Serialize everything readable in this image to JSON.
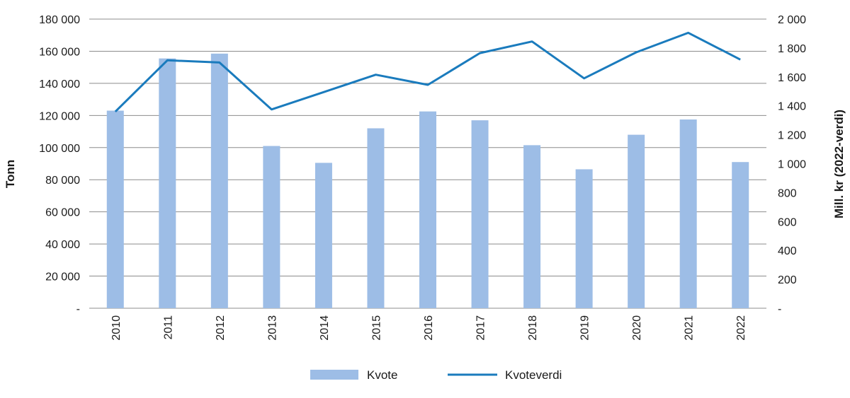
{
  "chart_data": {
    "type": "bar+line",
    "categories": [
      "2010",
      "2011",
      "2012",
      "2013",
      "2014",
      "2015",
      "2016",
      "2017",
      "2018",
      "2019",
      "2020",
      "2021",
      "2022"
    ],
    "series": [
      {
        "name": "Kvote",
        "type": "bar",
        "axis": "left",
        "color": "#9dbde6",
        "values": [
          123000,
          155500,
          158500,
          101000,
          90500,
          112000,
          122500,
          117000,
          101500,
          86500,
          108000,
          117500,
          91000
        ]
      },
      {
        "name": "Kvoteverdi",
        "type": "line",
        "axis": "right",
        "color": "#1a7bbd",
        "values": [
          1360,
          1715,
          1700,
          1375,
          1495,
          1615,
          1545,
          1765,
          1845,
          1590,
          1770,
          1905,
          1720
        ]
      }
    ],
    "ylabel_left": "Tonn",
    "ylabel_right": "Mill. kr (2022-verdi)",
    "ylim_left": [
      0,
      180000
    ],
    "ylim_right": [
      0,
      2000
    ],
    "yticks_left": [
      "-",
      "20 000",
      "40 000",
      "60 000",
      "80 000",
      "100 000",
      "120 000",
      "140 000",
      "160 000",
      "180 000"
    ],
    "yticks_right": [
      "-",
      "200",
      "400",
      "600",
      "800",
      "1 000",
      "1 200",
      "1 400",
      "1 600",
      "1 800",
      "2 000"
    ],
    "grid": "horizontal",
    "gridcolor": "#8c8c8c",
    "legend_position": "bottom"
  }
}
